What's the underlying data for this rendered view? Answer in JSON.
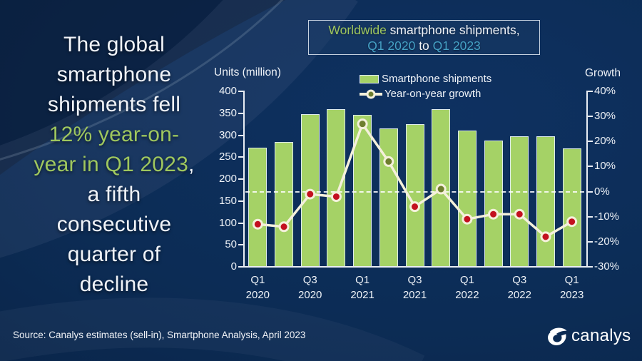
{
  "colors": {
    "white": "#f0f3f8",
    "green": "#9fc75e",
    "cyan": "#45a1c6",
    "bar": "#a5d266",
    "line": "#f4f0db",
    "marker_positive": "#6e7e2e",
    "marker_negative": "#c3101f"
  },
  "headline": {
    "lines": [
      [
        {
          "t": "The global",
          "c": "white"
        }
      ],
      [
        {
          "t": "smartphone",
          "c": "white"
        }
      ],
      [
        {
          "t": "shipments fell",
          "c": "white"
        }
      ],
      [
        {
          "t": "12% year-on-",
          "c": "green"
        }
      ],
      [
        {
          "t": "year in Q1 2023",
          "c": "green"
        },
        {
          "t": ",",
          "c": "white"
        }
      ],
      [
        {
          "t": "a fifth",
          "c": "white"
        }
      ],
      [
        {
          "t": "consecutive",
          "c": "white"
        }
      ],
      [
        {
          "t": "quarter of",
          "c": "white"
        }
      ],
      [
        {
          "t": "decline",
          "c": "white"
        }
      ]
    ]
  },
  "title_box": {
    "line1": [
      {
        "t": "Worldwide",
        "c": "green"
      },
      {
        "t": " smartphone shipments,",
        "c": "white"
      }
    ],
    "line2": [
      {
        "t": "Q1 2020",
        "c": "cyan"
      },
      {
        "t": " to ",
        "c": "white"
      },
      {
        "t": "Q1 2023",
        "c": "cyan"
      }
    ]
  },
  "chart_data": {
    "type": "bar+line",
    "title": "Worldwide smartphone shipments, Q1 2020 to Q1 2023",
    "categories": [
      "Q1 2020",
      "Q2 2020",
      "Q3 2020",
      "Q4 2020",
      "Q1 2021",
      "Q2 2021",
      "Q3 2021",
      "Q4 2021",
      "Q1 2022",
      "Q2 2022",
      "Q3 2022",
      "Q4 2022",
      "Q1 2023"
    ],
    "series": [
      {
        "name": "Smartphone shipments",
        "type": "bar",
        "axis": "left",
        "values": [
          272,
          285,
          348,
          359,
          347,
          316,
          325,
          360,
          311,
          287,
          298,
          297,
          270
        ]
      },
      {
        "name": "Year-on-year growth",
        "type": "line",
        "axis": "right",
        "values": [
          -13,
          -14,
          -1,
          -2,
          27,
          12,
          -6,
          1,
          -11,
          -9,
          -9,
          -18,
          -12
        ]
      }
    ],
    "left_axis": {
      "label": "Units (million)",
      "min": 0,
      "max": 400,
      "ticks": [
        0,
        50,
        100,
        150,
        200,
        250,
        300,
        350,
        400
      ]
    },
    "right_axis": {
      "label": "Growth",
      "min": -30,
      "max": 40,
      "ticks": [
        -30,
        -20,
        -10,
        0,
        10,
        20,
        30,
        40
      ],
      "format": "percent"
    },
    "x_tick_labels": [
      "Q1 2020",
      "Q3 2020",
      "Q1 2021",
      "Q3 2021",
      "Q1 2022",
      "Q3 2022",
      "Q1 2023"
    ],
    "x_tick_slots": [
      0,
      2,
      4,
      6,
      8,
      10,
      12
    ],
    "zero_line": true,
    "legend_position": "top-center",
    "grid": "off"
  },
  "legend": {
    "bar_label": "Smartphone shipments",
    "line_label": "Year-on-year growth"
  },
  "footer": {
    "source": "Source: Canalys estimates (sell-in), Smartphone Analysis, April 2023",
    "brand": "canalys"
  }
}
